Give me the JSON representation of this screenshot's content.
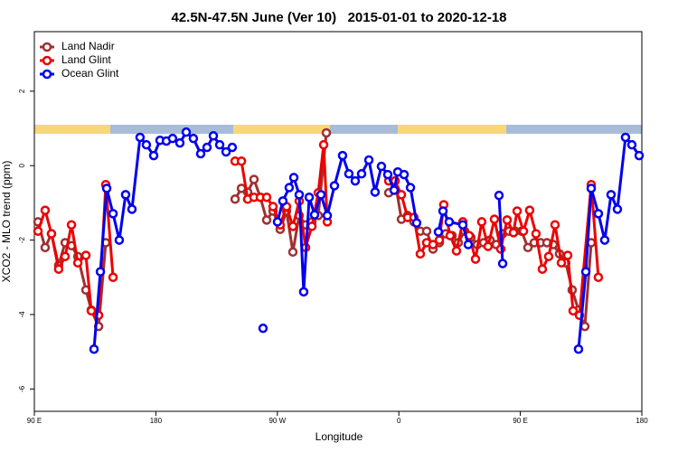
{
  "chart_data": {
    "type": "line",
    "title": "42.5N-47.5N June (Ver 10)   2015-01-01 to 2020-12-18",
    "xlabel": "Longitude",
    "ylabel": "XCO2 - MLO trend (ppm)",
    "xlim": [
      90,
      540
    ],
    "ylim": [
      -6.6,
      3.6
    ],
    "xticks": [
      {
        "value": 90,
        "label": "90 E"
      },
      {
        "value": 180,
        "label": "180"
      },
      {
        "value": 270,
        "label": "90 W"
      },
      {
        "value": 360,
        "label": "0"
      },
      {
        "value": 450,
        "label": "90 E"
      },
      {
        "value": 540,
        "label": "180"
      }
    ],
    "yticks": [
      -6,
      -4,
      -2,
      0,
      2
    ],
    "legend": "topleft",
    "series": [
      {
        "name": "Land Nadir",
        "color": "#a03030",
        "x": [
          92.7,
          98,
          102.7,
          108,
          112.8,
          117.5,
          122.2,
          128.2,
          132.2,
          137.6,
          142.9,
          null,
          238.7,
          243.4,
          248,
          252.7,
          257.4,
          262.1,
          266.8,
          272.1,
          276.8,
          281.5,
          286.2,
          290.9,
          295.6,
          300.3,
          306.3,
          null,
          352.5,
          357.2,
          361.9,
          366.5,
          371.2,
          375.9,
          380.6,
          385.3,
          390,
          394.7,
          399.4,
          404,
          408.7,
          413.4,
          418.1,
          422.8,
          427.5,
          432.2,
          436.9,
          441.5,
          446.2,
          450.9,
          455.6,
          460.3,
          465,
          469.7,
          474.4,
          479,
          483.7,
          488.4,
          493.1,
          497.8,
          502.5
        ],
        "values": [
          -1.51,
          -2.2,
          -1.83,
          -2.68,
          -2.07,
          -2.15,
          -2.44,
          -3.34,
          -3.88,
          -4.32,
          -2.07,
          null,
          -0.9,
          -0.61,
          -0.71,
          -0.37,
          -0.85,
          -1.46,
          -1.22,
          -1.71,
          -1.22,
          -2.32,
          -1.34,
          -1.59,
          -1.51,
          -1.34,
          0.88,
          null,
          -0.73,
          -0.41,
          -1.44,
          -1.34,
          -1.51,
          -1.76,
          -1.76,
          -2.24,
          -2.07,
          -1.83,
          -1.88,
          -2.07,
          -1.76,
          -1.93,
          -2.12,
          -2.07,
          -2.0,
          -2.12,
          -1.83,
          -1.76,
          -1.76,
          -1.76,
          -2.2,
          -2.07,
          -2.07,
          -2.07,
          -2.12,
          -2.37,
          -2.61,
          -3.34,
          -3.88,
          -4.32,
          -2.07
        ]
      },
      {
        "name": "Land Glint",
        "color": "#ee0000",
        "x": [
          92.7,
          98,
          102.7,
          108,
          112.8,
          117.5,
          122.2,
          128.2,
          132.2,
          137.6,
          142.9,
          148.3,
          null,
          238.7,
          243.4,
          248,
          252.7,
          257.4,
          262.1,
          266.8,
          272.1,
          276.8,
          281.5,
          286.2,
          290.9,
          295.6,
          300.3,
          304.3,
          307,
          null,
          352.5,
          357.2,
          361.9,
          366.5,
          371.2,
          375.9,
          380.6,
          385.3,
          390,
          393.3,
          398,
          402.7,
          407.4,
          412.1,
          416.8,
          421.4,
          426.1,
          430.8,
          435.5,
          440.2,
          444.9,
          447.6,
          452.3,
          456.9,
          461.6,
          466.3,
          471,
          475.7,
          480.4,
          485.1,
          489.1,
          493.8,
          502.5,
          507.8
        ],
        "values": [
          -1.76,
          -1.2,
          -1.83,
          -2.78,
          -2.44,
          -1.59,
          -2.61,
          -2.41,
          -3.9,
          -4.02,
          -0.51,
          -3.0,
          null,
          0.12,
          0.12,
          -0.9,
          -0.85,
          -0.85,
          -0.85,
          -1.1,
          -1.59,
          -1.1,
          -1.63,
          -0.95,
          -2.2,
          -1.63,
          -0.73,
          0.56,
          -1.51,
          null,
          -0.41,
          -0.41,
          -0.78,
          -1.39,
          -1.39,
          -2.37,
          -2.07,
          -2.12,
          -2.0,
          -1.05,
          -1.88,
          -2.29,
          -1.51,
          -1.88,
          -2.51,
          -1.51,
          -2.17,
          -1.44,
          -2.24,
          -1.46,
          -1.8,
          -1.22,
          -1.76,
          -1.2,
          -1.83,
          -2.78,
          -2.44,
          -1.59,
          -2.61,
          -2.41,
          -3.9,
          -4.02,
          -0.51,
          -3.0
        ]
      },
      {
        "name": "Ocean Glint",
        "color": "#0000ee",
        "x": [
          134.2,
          138.9,
          143.6,
          148.3,
          152.9,
          157.6,
          162.3,
          168.3,
          173,
          178.4,
          183.1,
          187.8,
          192.4,
          197.8,
          202.5,
          207.8,
          213.2,
          217.9,
          222.6,
          227.3,
          232,
          236.6,
          null,
          259.4,
          null,
          270.1,
          274.1,
          278.8,
          282.2,
          286.2,
          289.5,
          293.6,
          297.6,
          302.3,
          307,
          312.3,
          318.3,
          323,
          327.7,
          332.4,
          337.8,
          342.4,
          347.1,
          351.8,
          356.5,
          359.2,
          363.9,
          368.6,
          373.2,
          null,
          389.3,
          392.7,
          397.3,
          407.4,
          411.4,
          null,
          434.2,
          436.9,
          null,
          493.1,
          498.5,
          502.5,
          507.8,
          512.5,
          517.2,
          521.9,
          527.9,
          532.6,
          538
        ],
        "values": [
          -4.93,
          -2.85,
          -0.61,
          -1.29,
          -2.0,
          -0.78,
          -1.17,
          0.76,
          0.56,
          0.27,
          0.68,
          0.66,
          0.73,
          0.61,
          0.9,
          0.73,
          0.32,
          0.49,
          0.8,
          0.56,
          0.37,
          0.49,
          null,
          -4.37,
          null,
          -1.51,
          -0.95,
          -0.59,
          -0.32,
          -0.78,
          -3.39,
          -0.85,
          -1.32,
          -0.78,
          -1.34,
          -0.54,
          0.27,
          -0.22,
          -0.41,
          -0.22,
          0.15,
          -0.71,
          -0.02,
          -0.24,
          -0.66,
          -0.17,
          -0.24,
          -0.59,
          -1.54,
          null,
          -1.78,
          -1.22,
          -1.51,
          -1.59,
          -2.12,
          null,
          -0.8,
          -2.63,
          null,
          -4.93,
          -2.85,
          -0.61,
          -1.29,
          -2.0,
          -0.78,
          -1.17,
          0.76,
          0.56,
          0.27
        ]
      }
    ]
  }
}
